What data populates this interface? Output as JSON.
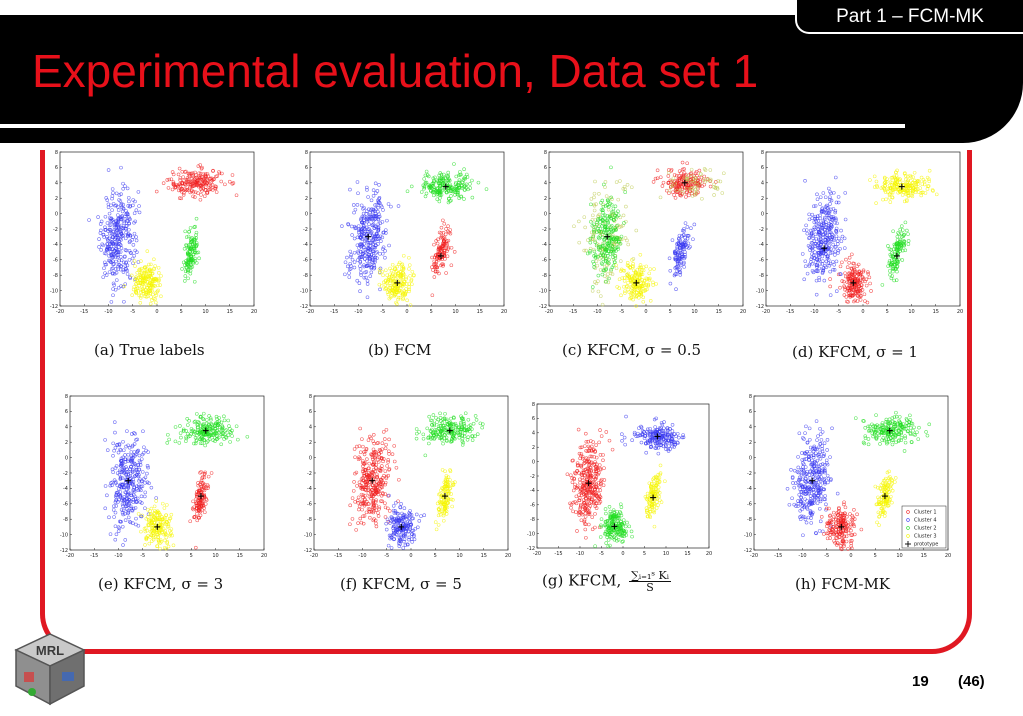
{
  "header": {
    "section_tab": "Part 1 – FCM-MK",
    "title": "Experimental evaluation, Data set 1"
  },
  "colors": {
    "title_red": "#e8101a",
    "frame_red": "#e01822",
    "blue": "#3b3bf0",
    "red": "#f02020",
    "green": "#22dd22",
    "yellow": "#f5f500",
    "olive": "#bfcc55"
  },
  "axis": {
    "xlim": [
      -20,
      20
    ],
    "ylim": [
      -12,
      8
    ],
    "xticks": [
      "-20",
      "-15",
      "-10",
      "-5",
      "0",
      "5",
      "10",
      "15",
      "20"
    ],
    "yticks": [
      "8",
      "6",
      "4",
      "2",
      "0",
      "-2",
      "-4",
      "-6",
      "-8",
      "-10",
      "-12"
    ]
  },
  "chart_data": [
    {
      "type": "scatter",
      "caption": "(a) True labels",
      "clusters": [
        {
          "color": "blue",
          "cx": -8,
          "cy": -3,
          "sx": 1.8,
          "sy": 3.0,
          "angle": -10,
          "n": 320
        },
        {
          "color": "red",
          "cx": 8,
          "cy": 4,
          "sx": 2.8,
          "sy": 0.9,
          "angle": 0,
          "n": 200
        },
        {
          "color": "green",
          "cx": 7,
          "cy": -5,
          "sx": 0.7,
          "sy": 1.6,
          "angle": -20,
          "n": 120
        },
        {
          "color": "yellow",
          "cx": -2,
          "cy": -9,
          "sx": 1.5,
          "sy": 1.3,
          "angle": 0,
          "n": 180
        }
      ],
      "prototypes": []
    },
    {
      "type": "scatter",
      "caption": "(b) FCM",
      "clusters": [
        {
          "color": "blue",
          "cx": -8,
          "cy": -3,
          "sx": 1.8,
          "sy": 3.0,
          "angle": -10,
          "n": 320
        },
        {
          "color": "green",
          "cx": 8,
          "cy": 3.5,
          "sx": 2.8,
          "sy": 0.9,
          "angle": 0,
          "n": 200
        },
        {
          "color": "red",
          "cx": 7,
          "cy": -5,
          "sx": 0.7,
          "sy": 1.6,
          "angle": -20,
          "n": 120
        },
        {
          "color": "yellow",
          "cx": -2,
          "cy": -9,
          "sx": 1.5,
          "sy": 1.3,
          "angle": 0,
          "n": 180
        }
      ],
      "prototypes": [
        [
          -8,
          -3
        ],
        [
          8,
          3.5
        ],
        [
          7,
          -5.5
        ],
        [
          -2,
          -9
        ]
      ]
    },
    {
      "type": "scatter",
      "caption": "(c) KFCM, σ = 0.5",
      "clusters": [
        {
          "color": "olive",
          "cx": -8,
          "cy": -3,
          "sx": 2.6,
          "sy": 3.6,
          "angle": -10,
          "n": 150
        },
        {
          "color": "green",
          "cx": -8,
          "cy": -3,
          "sx": 1.5,
          "sy": 2.6,
          "angle": -10,
          "n": 220
        },
        {
          "color": "red",
          "cx": 8,
          "cy": 4,
          "sx": 2.2,
          "sy": 0.8,
          "angle": 0,
          "n": 170
        },
        {
          "color": "olive",
          "cx": 10,
          "cy": 4,
          "sx": 3.2,
          "sy": 1.0,
          "angle": 0,
          "n": 60
        },
        {
          "color": "blue",
          "cx": 7,
          "cy": -5,
          "sx": 0.7,
          "sy": 1.6,
          "angle": -20,
          "n": 120
        },
        {
          "color": "yellow",
          "cx": -2,
          "cy": -9,
          "sx": 1.5,
          "sy": 1.3,
          "angle": 0,
          "n": 180
        }
      ],
      "prototypes": [
        [
          -8,
          -3
        ],
        [
          8,
          4
        ],
        [
          -2,
          -9
        ]
      ]
    },
    {
      "type": "scatter",
      "caption": "(d) KFCM, σ = 1",
      "clusters": [
        {
          "color": "blue",
          "cx": -8,
          "cy": -3,
          "sx": 1.8,
          "sy": 3.0,
          "angle": -10,
          "n": 320
        },
        {
          "color": "yellow",
          "cx": 8,
          "cy": 3.5,
          "sx": 2.8,
          "sy": 0.9,
          "angle": 0,
          "n": 200
        },
        {
          "color": "green",
          "cx": 7,
          "cy": -5,
          "sx": 0.7,
          "sy": 1.6,
          "angle": -20,
          "n": 120
        },
        {
          "color": "red",
          "cx": -2,
          "cy": -9,
          "sx": 1.5,
          "sy": 1.3,
          "angle": 0,
          "n": 180
        }
      ],
      "prototypes": [
        [
          -8,
          -4.5
        ],
        [
          8,
          3.5
        ],
        [
          7,
          -5.5
        ],
        [
          -2,
          -9
        ]
      ]
    },
    {
      "type": "scatter",
      "caption": "(e) KFCM, σ = 3",
      "clusters": [
        {
          "color": "blue",
          "cx": -8,
          "cy": -3,
          "sx": 1.8,
          "sy": 3.0,
          "angle": -10,
          "n": 320
        },
        {
          "color": "green",
          "cx": 8,
          "cy": 3.5,
          "sx": 2.8,
          "sy": 0.9,
          "angle": 0,
          "n": 200
        },
        {
          "color": "red",
          "cx": 7,
          "cy": -5,
          "sx": 0.7,
          "sy": 1.6,
          "angle": -20,
          "n": 120
        },
        {
          "color": "yellow",
          "cx": -2,
          "cy": -9,
          "sx": 1.5,
          "sy": 1.3,
          "angle": 0,
          "n": 180
        }
      ],
      "prototypes": [
        [
          -8,
          -3
        ],
        [
          8,
          3.5
        ],
        [
          7,
          -5
        ],
        [
          -2,
          -9
        ]
      ]
    },
    {
      "type": "scatter",
      "caption": "(f) KFCM, σ = 5",
      "clusters": [
        {
          "color": "red",
          "cx": -8,
          "cy": -3,
          "sx": 1.8,
          "sy": 3.0,
          "angle": -10,
          "n": 320
        },
        {
          "color": "green",
          "cx": 8,
          "cy": 3.5,
          "sx": 2.8,
          "sy": 0.9,
          "angle": 0,
          "n": 200
        },
        {
          "color": "yellow",
          "cx": 7,
          "cy": -5,
          "sx": 0.7,
          "sy": 1.6,
          "angle": -20,
          "n": 120
        },
        {
          "color": "blue",
          "cx": -2,
          "cy": -9,
          "sx": 1.5,
          "sy": 1.3,
          "angle": 0,
          "n": 180
        }
      ],
      "prototypes": [
        [
          -8,
          -3
        ],
        [
          8,
          3.5
        ],
        [
          7,
          -5
        ],
        [
          -2,
          -9
        ]
      ]
    },
    {
      "type": "scatter",
      "caption_prefix": "(g) KFCM,",
      "caption_num": "∑ᵢ₌₁ˢ Kᵢ",
      "caption_den": "S",
      "clusters": [
        {
          "color": "red",
          "cx": -8,
          "cy": -3,
          "sx": 1.8,
          "sy": 3.0,
          "angle": -10,
          "n": 320
        },
        {
          "color": "blue",
          "cx": 8,
          "cy": 3.5,
          "sx": 2.8,
          "sy": 0.9,
          "angle": 0,
          "n": 200
        },
        {
          "color": "yellow",
          "cx": 7,
          "cy": -5,
          "sx": 0.7,
          "sy": 1.6,
          "angle": -20,
          "n": 120
        },
        {
          "color": "green",
          "cx": -2,
          "cy": -9,
          "sx": 1.5,
          "sy": 1.3,
          "angle": 0,
          "n": 180
        }
      ],
      "prototypes": [
        [
          -8,
          -3
        ],
        [
          8,
          3.5
        ],
        [
          7,
          -5
        ],
        [
          -2,
          -9
        ]
      ]
    },
    {
      "type": "scatter",
      "caption": "(h) FCM-MK",
      "clusters": [
        {
          "color": "blue",
          "cx": -8,
          "cy": -3,
          "sx": 1.8,
          "sy": 3.0,
          "angle": -10,
          "n": 320
        },
        {
          "color": "green",
          "cx": 8,
          "cy": 3.5,
          "sx": 2.8,
          "sy": 0.9,
          "angle": 0,
          "n": 200
        },
        {
          "color": "yellow",
          "cx": 7,
          "cy": -5,
          "sx": 0.7,
          "sy": 1.6,
          "angle": -20,
          "n": 120
        },
        {
          "color": "red",
          "cx": -2,
          "cy": -9,
          "sx": 1.5,
          "sy": 1.3,
          "angle": 0,
          "n": 180
        }
      ],
      "prototypes": [
        [
          -8,
          -3
        ],
        [
          8,
          3.5
        ],
        [
          7,
          -5
        ],
        [
          -2,
          -9
        ]
      ],
      "legend": [
        {
          "label": "Cluster 1",
          "color": "red"
        },
        {
          "label": "Cluster 4",
          "color": "blue"
        },
        {
          "label": "Cluster 2",
          "color": "green"
        },
        {
          "label": "Cluster 3",
          "color": "yellow"
        },
        {
          "label": "prototype",
          "color": "black"
        }
      ]
    }
  ],
  "footer": {
    "logo_text": "MRL",
    "page": "19",
    "total": "(46)"
  }
}
